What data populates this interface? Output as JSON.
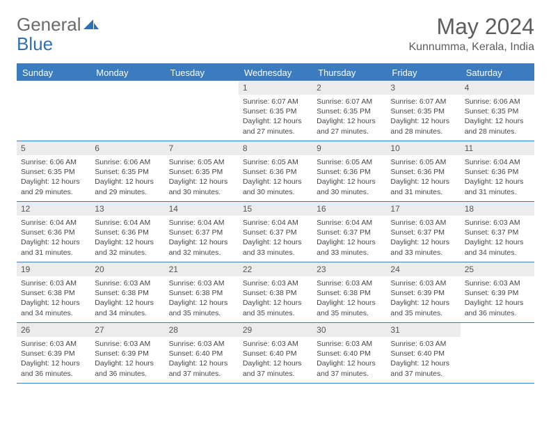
{
  "logo": {
    "text1": "General",
    "text2": "Blue",
    "color1": "#6a6a6a",
    "color2": "#2f6fb3",
    "icon_color": "#2f6fb3"
  },
  "header": {
    "month_title": "May 2024",
    "location": "Kunnumma, Kerala, India"
  },
  "colors": {
    "header_bg": "#3b7bbf",
    "header_text": "#ffffff",
    "daynum_bg": "#ececec",
    "border": "#3b7bbf",
    "text": "#464646"
  },
  "day_names": [
    "Sunday",
    "Monday",
    "Tuesday",
    "Wednesday",
    "Thursday",
    "Friday",
    "Saturday"
  ],
  "weeks": [
    [
      {
        "blank": true
      },
      {
        "blank": true
      },
      {
        "blank": true
      },
      {
        "day": "1",
        "sunrise": "Sunrise: 6:07 AM",
        "sunset": "Sunset: 6:35 PM",
        "daylight": "Daylight: 12 hours and 27 minutes."
      },
      {
        "day": "2",
        "sunrise": "Sunrise: 6:07 AM",
        "sunset": "Sunset: 6:35 PM",
        "daylight": "Daylight: 12 hours and 27 minutes."
      },
      {
        "day": "3",
        "sunrise": "Sunrise: 6:07 AM",
        "sunset": "Sunset: 6:35 PM",
        "daylight": "Daylight: 12 hours and 28 minutes."
      },
      {
        "day": "4",
        "sunrise": "Sunrise: 6:06 AM",
        "sunset": "Sunset: 6:35 PM",
        "daylight": "Daylight: 12 hours and 28 minutes."
      }
    ],
    [
      {
        "day": "5",
        "sunrise": "Sunrise: 6:06 AM",
        "sunset": "Sunset: 6:35 PM",
        "daylight": "Daylight: 12 hours and 29 minutes."
      },
      {
        "day": "6",
        "sunrise": "Sunrise: 6:06 AM",
        "sunset": "Sunset: 6:35 PM",
        "daylight": "Daylight: 12 hours and 29 minutes."
      },
      {
        "day": "7",
        "sunrise": "Sunrise: 6:05 AM",
        "sunset": "Sunset: 6:35 PM",
        "daylight": "Daylight: 12 hours and 30 minutes."
      },
      {
        "day": "8",
        "sunrise": "Sunrise: 6:05 AM",
        "sunset": "Sunset: 6:36 PM",
        "daylight": "Daylight: 12 hours and 30 minutes."
      },
      {
        "day": "9",
        "sunrise": "Sunrise: 6:05 AM",
        "sunset": "Sunset: 6:36 PM",
        "daylight": "Daylight: 12 hours and 30 minutes."
      },
      {
        "day": "10",
        "sunrise": "Sunrise: 6:05 AM",
        "sunset": "Sunset: 6:36 PM",
        "daylight": "Daylight: 12 hours and 31 minutes."
      },
      {
        "day": "11",
        "sunrise": "Sunrise: 6:04 AM",
        "sunset": "Sunset: 6:36 PM",
        "daylight": "Daylight: 12 hours and 31 minutes."
      }
    ],
    [
      {
        "day": "12",
        "sunrise": "Sunrise: 6:04 AM",
        "sunset": "Sunset: 6:36 PM",
        "daylight": "Daylight: 12 hours and 31 minutes."
      },
      {
        "day": "13",
        "sunrise": "Sunrise: 6:04 AM",
        "sunset": "Sunset: 6:36 PM",
        "daylight": "Daylight: 12 hours and 32 minutes."
      },
      {
        "day": "14",
        "sunrise": "Sunrise: 6:04 AM",
        "sunset": "Sunset: 6:37 PM",
        "daylight": "Daylight: 12 hours and 32 minutes."
      },
      {
        "day": "15",
        "sunrise": "Sunrise: 6:04 AM",
        "sunset": "Sunset: 6:37 PM",
        "daylight": "Daylight: 12 hours and 33 minutes."
      },
      {
        "day": "16",
        "sunrise": "Sunrise: 6:04 AM",
        "sunset": "Sunset: 6:37 PM",
        "daylight": "Daylight: 12 hours and 33 minutes."
      },
      {
        "day": "17",
        "sunrise": "Sunrise: 6:03 AM",
        "sunset": "Sunset: 6:37 PM",
        "daylight": "Daylight: 12 hours and 33 minutes."
      },
      {
        "day": "18",
        "sunrise": "Sunrise: 6:03 AM",
        "sunset": "Sunset: 6:37 PM",
        "daylight": "Daylight: 12 hours and 34 minutes."
      }
    ],
    [
      {
        "day": "19",
        "sunrise": "Sunrise: 6:03 AM",
        "sunset": "Sunset: 6:38 PM",
        "daylight": "Daylight: 12 hours and 34 minutes."
      },
      {
        "day": "20",
        "sunrise": "Sunrise: 6:03 AM",
        "sunset": "Sunset: 6:38 PM",
        "daylight": "Daylight: 12 hours and 34 minutes."
      },
      {
        "day": "21",
        "sunrise": "Sunrise: 6:03 AM",
        "sunset": "Sunset: 6:38 PM",
        "daylight": "Daylight: 12 hours and 35 minutes."
      },
      {
        "day": "22",
        "sunrise": "Sunrise: 6:03 AM",
        "sunset": "Sunset: 6:38 PM",
        "daylight": "Daylight: 12 hours and 35 minutes."
      },
      {
        "day": "23",
        "sunrise": "Sunrise: 6:03 AM",
        "sunset": "Sunset: 6:38 PM",
        "daylight": "Daylight: 12 hours and 35 minutes."
      },
      {
        "day": "24",
        "sunrise": "Sunrise: 6:03 AM",
        "sunset": "Sunset: 6:39 PM",
        "daylight": "Daylight: 12 hours and 35 minutes."
      },
      {
        "day": "25",
        "sunrise": "Sunrise: 6:03 AM",
        "sunset": "Sunset: 6:39 PM",
        "daylight": "Daylight: 12 hours and 36 minutes."
      }
    ],
    [
      {
        "day": "26",
        "sunrise": "Sunrise: 6:03 AM",
        "sunset": "Sunset: 6:39 PM",
        "daylight": "Daylight: 12 hours and 36 minutes."
      },
      {
        "day": "27",
        "sunrise": "Sunrise: 6:03 AM",
        "sunset": "Sunset: 6:39 PM",
        "daylight": "Daylight: 12 hours and 36 minutes."
      },
      {
        "day": "28",
        "sunrise": "Sunrise: 6:03 AM",
        "sunset": "Sunset: 6:40 PM",
        "daylight": "Daylight: 12 hours and 37 minutes."
      },
      {
        "day": "29",
        "sunrise": "Sunrise: 6:03 AM",
        "sunset": "Sunset: 6:40 PM",
        "daylight": "Daylight: 12 hours and 37 minutes."
      },
      {
        "day": "30",
        "sunrise": "Sunrise: 6:03 AM",
        "sunset": "Sunset: 6:40 PM",
        "daylight": "Daylight: 12 hours and 37 minutes."
      },
      {
        "day": "31",
        "sunrise": "Sunrise: 6:03 AM",
        "sunset": "Sunset: 6:40 PM",
        "daylight": "Daylight: 12 hours and 37 minutes."
      },
      {
        "blank": true
      }
    ]
  ]
}
